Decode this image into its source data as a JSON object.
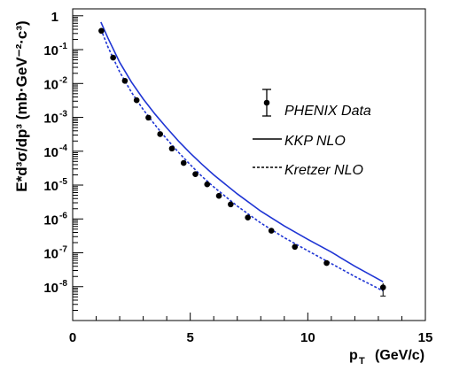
{
  "chart_data": {
    "type": "scatter",
    "xlabel": {
      "main": "p",
      "sub": "T",
      "unit": "(GeV/c)"
    },
    "ylabel": "E*d³σ/dp³ (mb·GeV⁻²·c³)",
    "xlim": [
      0,
      15
    ],
    "ylim": [
      1e-09,
      1.6
    ],
    "yscale": "log",
    "x_ticks": [
      0,
      5,
      10,
      15
    ],
    "y_ticks": [
      {
        "value": 1,
        "base": "1",
        "exp": ""
      },
      {
        "value": 0.1,
        "base": "10",
        "exp": "-1"
      },
      {
        "value": 0.01,
        "base": "10",
        "exp": "-2"
      },
      {
        "value": 0.001,
        "base": "10",
        "exp": "-3"
      },
      {
        "value": 0.0001,
        "base": "10",
        "exp": "-4"
      },
      {
        "value": 1e-05,
        "base": "10",
        "exp": "-5"
      },
      {
        "value": 1e-06,
        "base": "10",
        "exp": "-6"
      },
      {
        "value": 1e-07,
        "base": "10",
        "exp": "-7"
      },
      {
        "value": 1e-08,
        "base": "10",
        "exp": "-8"
      }
    ],
    "grid": false,
    "legend_position": "right",
    "series": [
      {
        "name": "PHENIX Data",
        "kind": "points",
        "color": "#000000",
        "x": [
          1.22,
          1.72,
          2.22,
          2.72,
          3.22,
          3.72,
          4.22,
          4.72,
          5.22,
          5.72,
          6.22,
          6.72,
          7.45,
          8.45,
          9.45,
          10.8,
          13.2
        ],
        "y": [
          0.36,
          0.058,
          0.012,
          0.0032,
          0.00098,
          0.00032,
          0.00012,
          4.5e-05,
          2.1e-05,
          1.05e-05,
          4.8e-06,
          2.7e-06,
          1.1e-06,
          4.5e-07,
          1.5e-07,
          5e-08,
          9.5e-09
        ],
        "y_err_low": [
          0,
          0,
          0,
          0,
          0,
          0,
          0,
          0,
          0,
          0,
          0,
          0,
          0,
          0,
          0,
          0,
          4.2e-09
        ],
        "y_err_high": [
          0,
          0,
          0,
          0,
          0,
          0,
          0,
          0,
          0,
          0,
          0,
          0,
          0,
          0,
          0,
          0,
          3.2e-09
        ]
      },
      {
        "name": "KKP NLO",
        "kind": "line",
        "dash": "solid",
        "color": "#1f35d4",
        "x": [
          1.2,
          1.5,
          2.0,
          2.5,
          3.0,
          3.5,
          4.0,
          4.5,
          5.0,
          5.5,
          6.0,
          7.0,
          8.0,
          9.0,
          10.0,
          11.0,
          12.0,
          13.2
        ],
        "y": [
          0.65,
          0.22,
          0.042,
          0.011,
          0.0035,
          0.00125,
          0.00049,
          0.0002,
          8.8e-05,
          4.1e-05,
          2e-05,
          5.5e-06,
          1.7e-06,
          6.2e-07,
          2.5e-07,
          1.05e-07,
          4e-08,
          1.4e-08
        ]
      },
      {
        "name": "Kretzer NLO",
        "kind": "line",
        "dash": "dashed",
        "color": "#1f35d4",
        "x": [
          1.2,
          1.5,
          2.0,
          2.5,
          3.0,
          3.5,
          4.0,
          4.5,
          5.0,
          5.5,
          6.0,
          7.0,
          8.0,
          9.0,
          10.0,
          11.0,
          12.0,
          13.2
        ],
        "y": [
          0.4,
          0.12,
          0.022,
          0.0055,
          0.0017,
          0.0006,
          0.00023,
          9.3e-05,
          4e-05,
          1.8e-05,
          8.8e-06,
          2.4e-06,
          7.6e-07,
          2.8e-07,
          1.15e-07,
          4.8e-08,
          2e-08,
          7.5e-09
        ]
      }
    ]
  }
}
